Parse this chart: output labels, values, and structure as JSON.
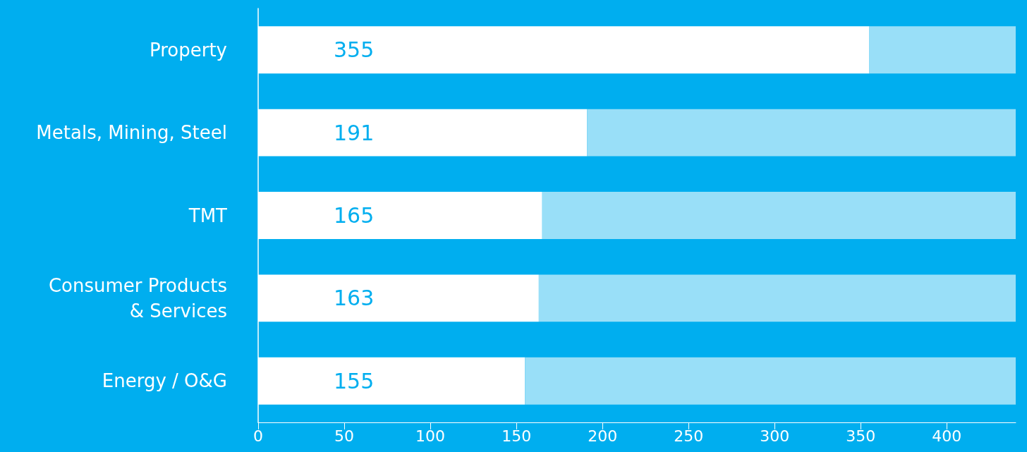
{
  "chart_data": {
    "type": "bar",
    "orientation": "horizontal",
    "stacked": true,
    "categories": [
      "Property",
      "Metals, Mining, Steel",
      "TMT",
      "Consumer Products\n& Services",
      "Energy / O&G"
    ],
    "series": [
      {
        "color": "#ffffff",
        "values": [
          355,
          191,
          165,
          163,
          155
        ],
        "value_labels": [
          "355",
          "191",
          "165",
          "163",
          "155"
        ]
      },
      {
        "color": "#99dff8",
        "values": [
          85,
          249,
          275,
          277,
          285
        ]
      }
    ],
    "xlim": [
      0,
      440
    ],
    "xticks": [
      0,
      50,
      100,
      150,
      200,
      250,
      300,
      350,
      400
    ],
    "grid": false
  }
}
